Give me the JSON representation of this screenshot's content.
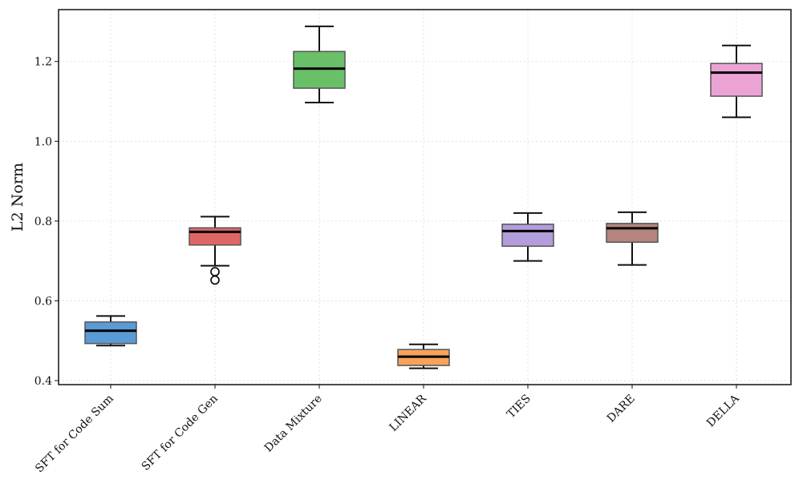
{
  "chart_data": {
    "type": "boxplot",
    "title": "",
    "xlabel": "",
    "ylabel": "L2 Norm",
    "ylim": [
      0.39,
      1.33
    ],
    "yticks": [
      0.4,
      0.6,
      0.8,
      1.0,
      1.2
    ],
    "ytick_labels": [
      "0.4",
      "0.6",
      "0.8",
      "1.0",
      "1.2"
    ],
    "grid": true,
    "categories": [
      "SFT for Code Sum",
      "SFT for Code Gen",
      "Data Mixture",
      "LINEAR",
      "TIES",
      "DARE",
      "DELLA"
    ],
    "boxes": [
      {
        "name": "SFT for Code Sum",
        "color": "#5b9bd5",
        "whisker_low": 0.488,
        "q1": 0.493,
        "median": 0.525,
        "q3": 0.547,
        "whisker_high": 0.562,
        "outliers": []
      },
      {
        "name": "SFT for Code Gen",
        "color": "#e06666",
        "whisker_low": 0.688,
        "q1": 0.74,
        "median": 0.773,
        "q3": 0.783,
        "whisker_high": 0.811,
        "outliers": [
          0.673,
          0.652
        ]
      },
      {
        "name": "Data Mixture",
        "color": "#6abf69",
        "whisker_low": 1.097,
        "q1": 1.133,
        "median": 1.182,
        "q3": 1.225,
        "whisker_high": 1.288,
        "outliers": []
      },
      {
        "name": "LINEAR",
        "color": "#f7a35c",
        "whisker_low": 0.431,
        "q1": 0.438,
        "median": 0.46,
        "q3": 0.478,
        "whisker_high": 0.491,
        "outliers": []
      },
      {
        "name": "TIES",
        "color": "#b39ddb",
        "whisker_low": 0.7,
        "q1": 0.737,
        "median": 0.775,
        "q3": 0.792,
        "whisker_high": 0.82,
        "outliers": []
      },
      {
        "name": "DARE",
        "color": "#b5857e",
        "whisker_low": 0.69,
        "q1": 0.747,
        "median": 0.782,
        "q3": 0.794,
        "whisker_high": 0.822,
        "outliers": []
      },
      {
        "name": "DELLA",
        "color": "#eba3d6",
        "whisker_low": 1.06,
        "q1": 1.113,
        "median": 1.172,
        "q3": 1.195,
        "whisker_high": 1.24,
        "outliers": []
      }
    ]
  }
}
